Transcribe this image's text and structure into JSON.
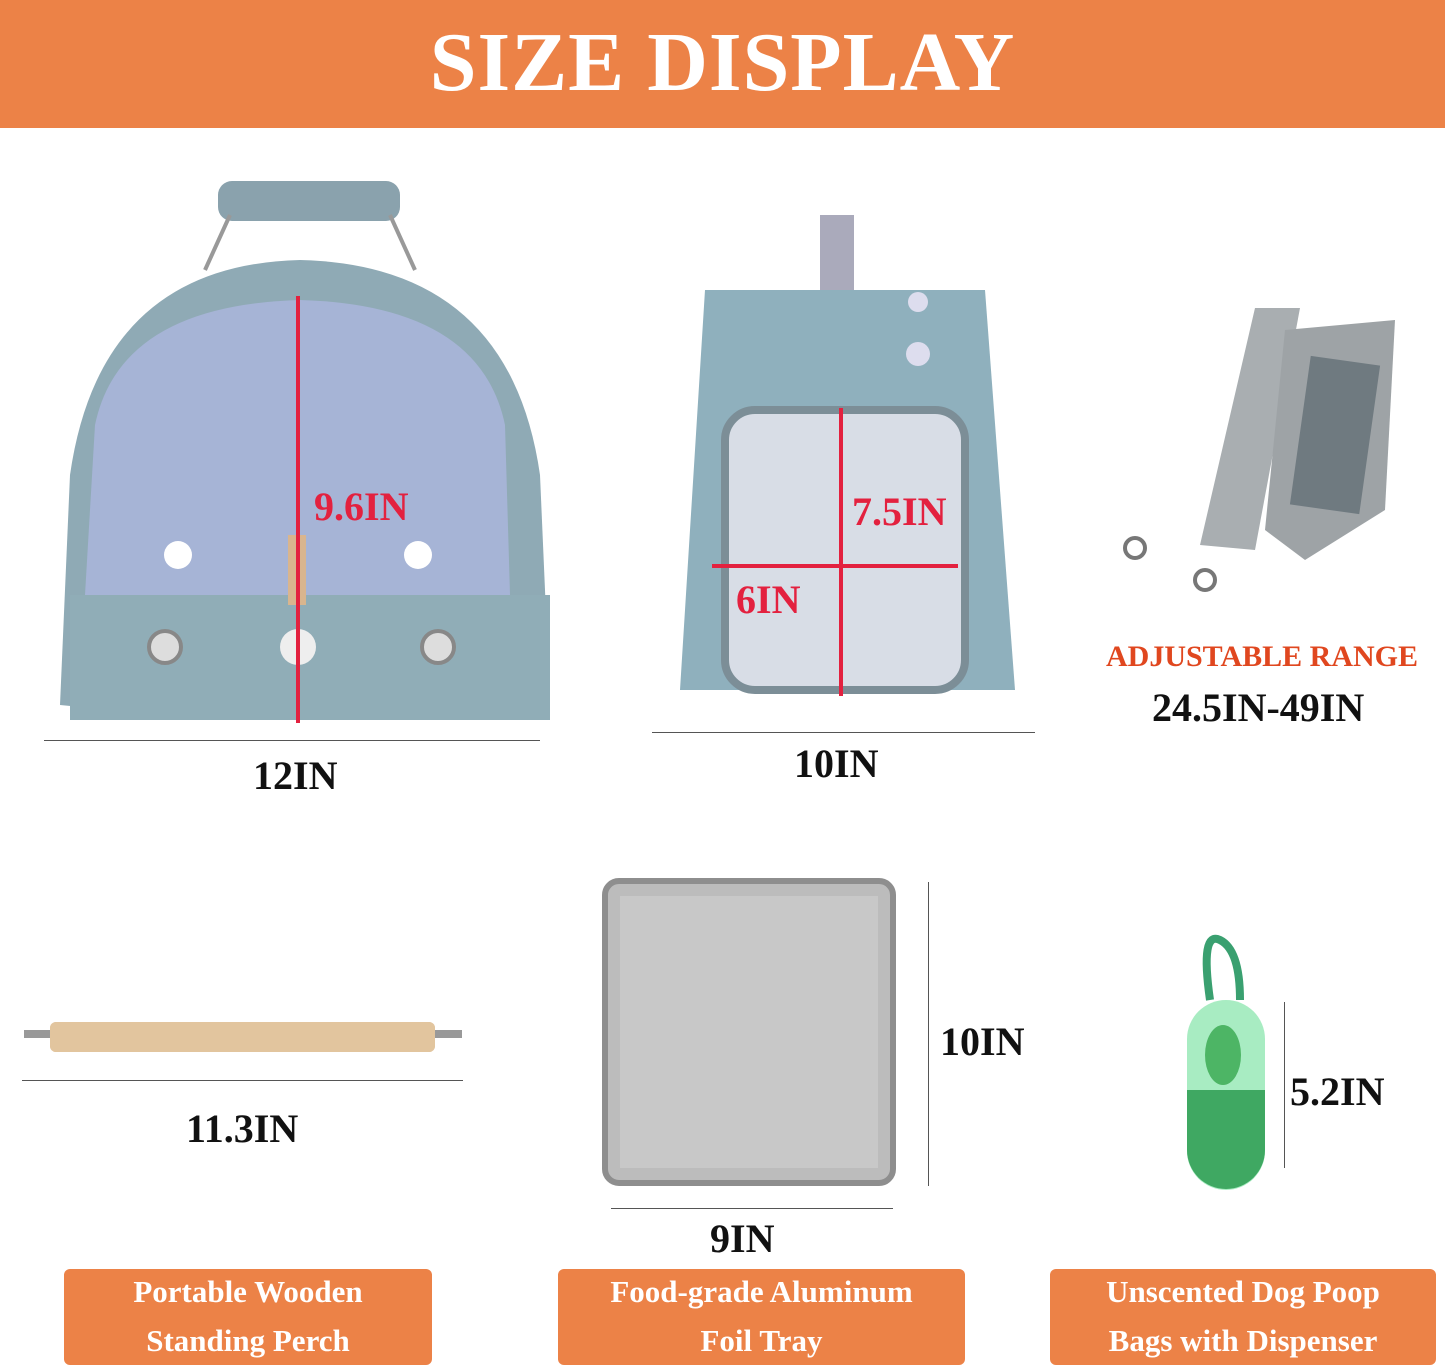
{
  "header": {
    "title": "SIZE DISPLAY"
  },
  "colors": {
    "accent": "#EC8247",
    "measure_red": "#E3213F",
    "range_label": "#E0471F"
  },
  "products": {
    "carrier_front": {
      "height": "9.6IN",
      "width": "12IN"
    },
    "carrier_side": {
      "height": "7.5IN",
      "window_width": "6IN",
      "width": "10IN"
    },
    "strap": {
      "range_label": "ADJUSTABLE RANGE",
      "range_value": "24.5IN-49IN"
    },
    "perch": {
      "length": "11.3IN",
      "label_line1": "Portable Wooden",
      "label_line2": "Standing Perch"
    },
    "tray": {
      "height": "10IN",
      "width": "9IN",
      "label_line1": "Food-grade Aluminum",
      "label_line2": "Foil Tray"
    },
    "dispenser": {
      "height": "5.2IN",
      "label_line1": "Unscented Dog Poop",
      "label_line2": "Bags with Dispenser"
    }
  }
}
